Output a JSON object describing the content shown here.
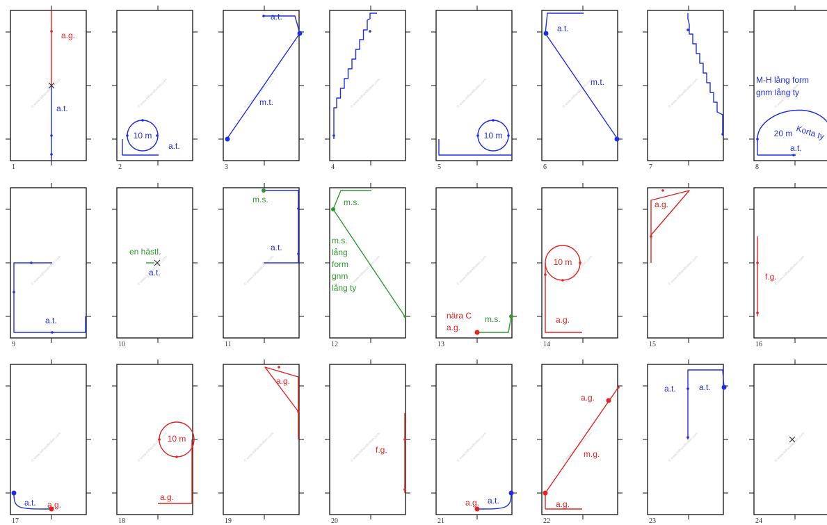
{
  "colors": {
    "blue": "#1f2ee6",
    "red": "#e52222",
    "green": "#2e9a2e",
    "frame": "#111111",
    "cross": "#333333"
  },
  "watermark": "© www.ridhandboken.com",
  "diagrams": [
    {
      "number": "1",
      "labels": [
        {
          "text": "a.g.",
          "color": "red"
        },
        {
          "text": "a.t.",
          "color": "blue"
        }
      ]
    },
    {
      "number": "2",
      "labels": [
        {
          "text": "10 m",
          "color": "blue"
        },
        {
          "text": "a.t.",
          "color": "blue"
        }
      ]
    },
    {
      "number": "3",
      "labels": [
        {
          "text": "a.t.",
          "color": "blue"
        },
        {
          "text": "m.t.",
          "color": "blue"
        }
      ]
    },
    {
      "number": "4",
      "labels": []
    },
    {
      "number": "5",
      "labels": [
        {
          "text": "10 m",
          "color": "blue"
        }
      ]
    },
    {
      "number": "6",
      "labels": [
        {
          "text": "a.t.",
          "color": "blue"
        },
        {
          "text": "m.t.",
          "color": "blue"
        }
      ]
    },
    {
      "number": "7",
      "labels": []
    },
    {
      "number": "8",
      "labels": [
        {
          "text": "M-H lång form",
          "color": "blue"
        },
        {
          "text": "gnm lång ty",
          "color": "blue"
        },
        {
          "text": "Korta ty",
          "color": "blue"
        },
        {
          "text": "20 m",
          "color": "blue"
        },
        {
          "text": "a.t.",
          "color": "blue"
        }
      ]
    },
    {
      "number": "9",
      "labels": [
        {
          "text": "a.t.",
          "color": "blue"
        }
      ]
    },
    {
      "number": "10",
      "labels": [
        {
          "text": "en hästl.",
          "color": "green"
        },
        {
          "text": "a.t.",
          "color": "blue"
        }
      ]
    },
    {
      "number": "11",
      "labels": [
        {
          "text": "m.s.",
          "color": "green"
        },
        {
          "text": "a.t.",
          "color": "blue"
        }
      ]
    },
    {
      "number": "12",
      "labels": [
        {
          "text": "m.s.",
          "color": "green"
        },
        {
          "text": "m.s.",
          "color": "green"
        },
        {
          "text": "lång",
          "color": "green"
        },
        {
          "text": "form",
          "color": "green"
        },
        {
          "text": "gnm",
          "color": "green"
        },
        {
          "text": "lång ty",
          "color": "green"
        }
      ]
    },
    {
      "number": "13",
      "labels": [
        {
          "text": "nära C",
          "color": "red"
        },
        {
          "text": "a.g.",
          "color": "red"
        },
        {
          "text": "m.s.",
          "color": "green"
        }
      ]
    },
    {
      "number": "14",
      "labels": [
        {
          "text": "10 m",
          "color": "red"
        },
        {
          "text": "a.g.",
          "color": "red"
        }
      ]
    },
    {
      "number": "15",
      "labels": [
        {
          "text": "a.g.",
          "color": "red"
        }
      ]
    },
    {
      "number": "16",
      "labels": [
        {
          "text": "f.g.",
          "color": "red"
        }
      ]
    },
    {
      "number": "17",
      "labels": [
        {
          "text": "a.t.",
          "color": "blue"
        },
        {
          "text": "a.g.",
          "color": "red"
        }
      ]
    },
    {
      "number": "18",
      "labels": [
        {
          "text": "10 m",
          "color": "red"
        },
        {
          "text": "a.g.",
          "color": "red"
        }
      ]
    },
    {
      "number": "19",
      "labels": [
        {
          "text": "a.g.",
          "color": "red"
        }
      ]
    },
    {
      "number": "20",
      "labels": [
        {
          "text": "f.g.",
          "color": "red"
        }
      ]
    },
    {
      "number": "21",
      "labels": [
        {
          "text": "a.g.",
          "color": "red"
        },
        {
          "text": "a.t.",
          "color": "blue"
        }
      ]
    },
    {
      "number": "22",
      "labels": [
        {
          "text": "a.g.",
          "color": "red"
        },
        {
          "text": "m.g.",
          "color": "red"
        },
        {
          "text": "a.g.",
          "color": "red"
        }
      ]
    },
    {
      "number": "23",
      "labels": [
        {
          "text": "a.t.",
          "color": "blue"
        },
        {
          "text": "a.t.",
          "color": "blue"
        }
      ]
    },
    {
      "number": "24",
      "labels": []
    }
  ]
}
